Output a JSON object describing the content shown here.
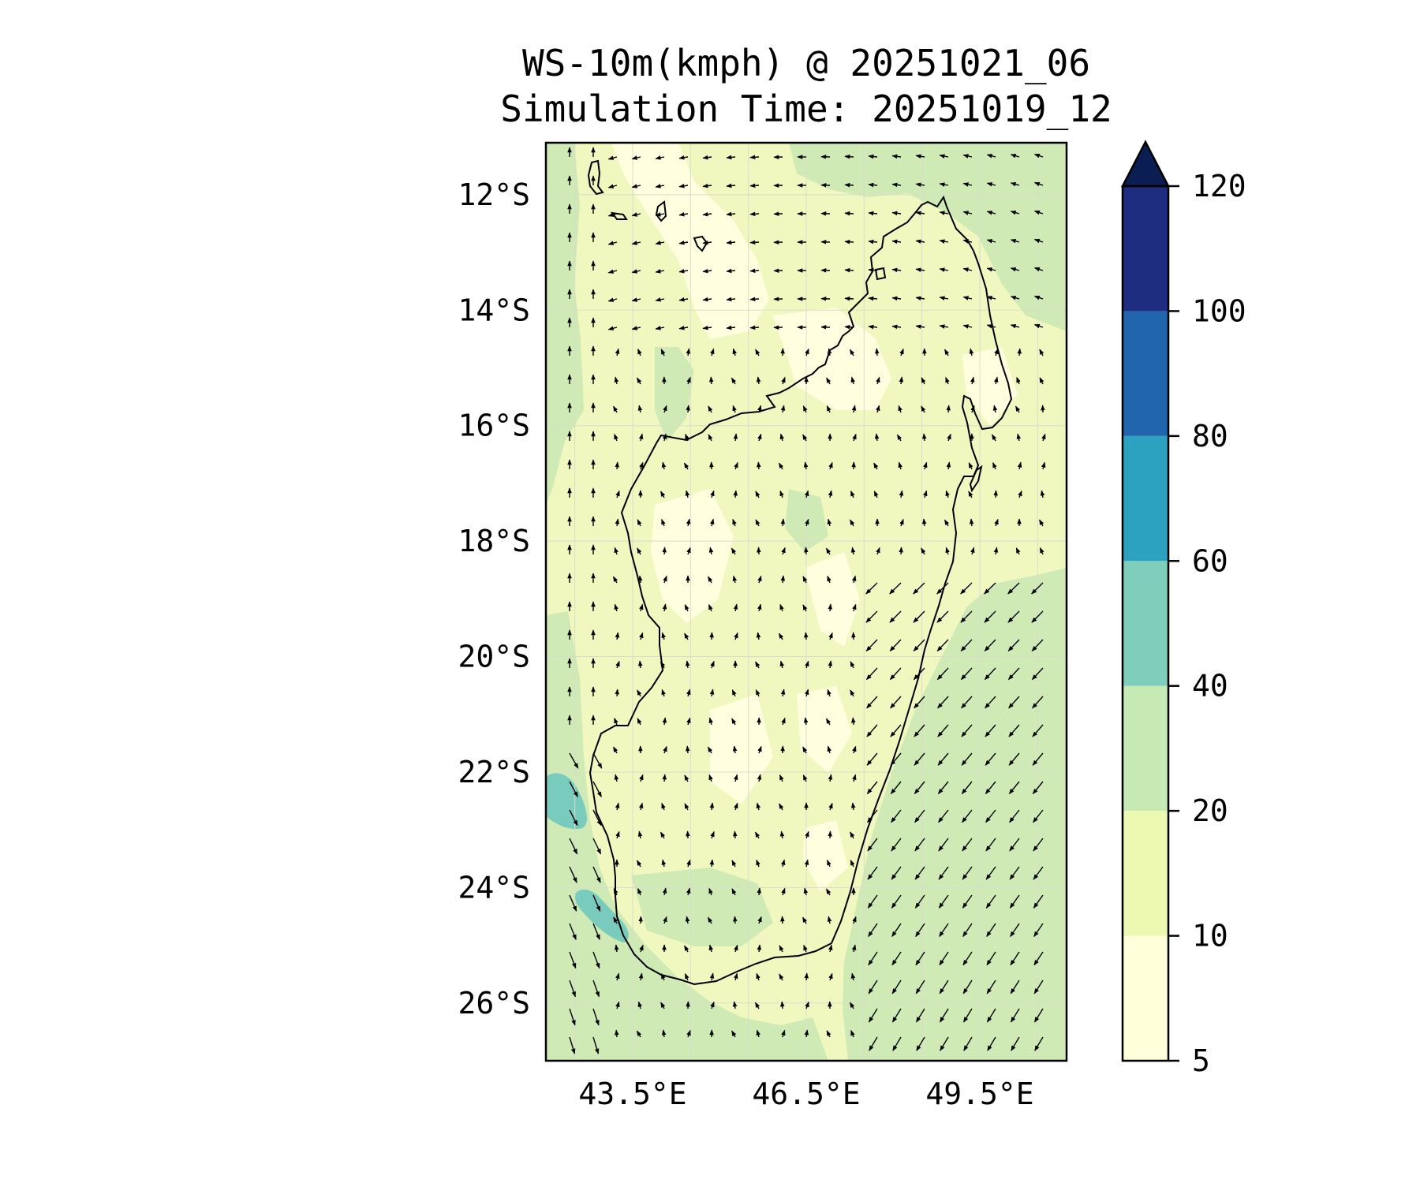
{
  "title": {
    "line1": "WS-10m(kmph) @ 20251021_06",
    "line2": "Simulation Time: 20251019_12"
  },
  "map": {
    "lon_range": [
      42.0,
      51.0
    ],
    "lat_range": [
      -27.0,
      -11.1
    ],
    "lat_ticks": [
      "12°S",
      "14°S",
      "16°S",
      "18°S",
      "20°S",
      "22°S",
      "24°S",
      "26°S"
    ],
    "lat_tick_values": [
      -12,
      -14,
      -16,
      -18,
      -20,
      -22,
      -24,
      -26
    ],
    "lon_ticks": [
      "43.5°E",
      "46.5°E",
      "49.5°E"
    ],
    "lon_tick_values": [
      43.5,
      46.5,
      49.5
    ],
    "grid": true,
    "variable": "10 m wind speed with wind direction arrows"
  },
  "colorbar": {
    "levels": [
      "5",
      "10",
      "20",
      "40",
      "60",
      "80",
      "100",
      "120"
    ],
    "level_values": [
      5,
      10,
      20,
      40,
      60,
      80,
      100,
      120
    ],
    "colors": [
      "#ffffd9",
      "#edf8b1",
      "#c7e9b4",
      "#7fcdbb",
      "#2ca2c0",
      "#2166ac",
      "#1f2d81",
      "#0b1e54"
    ],
    "extend": "max"
  },
  "colors": {
    "calm": "#ffffd9",
    "light": "#f0f8c0",
    "moderate": "#cfeab5",
    "strong": "#78cbbd",
    "coast": "#000000"
  }
}
